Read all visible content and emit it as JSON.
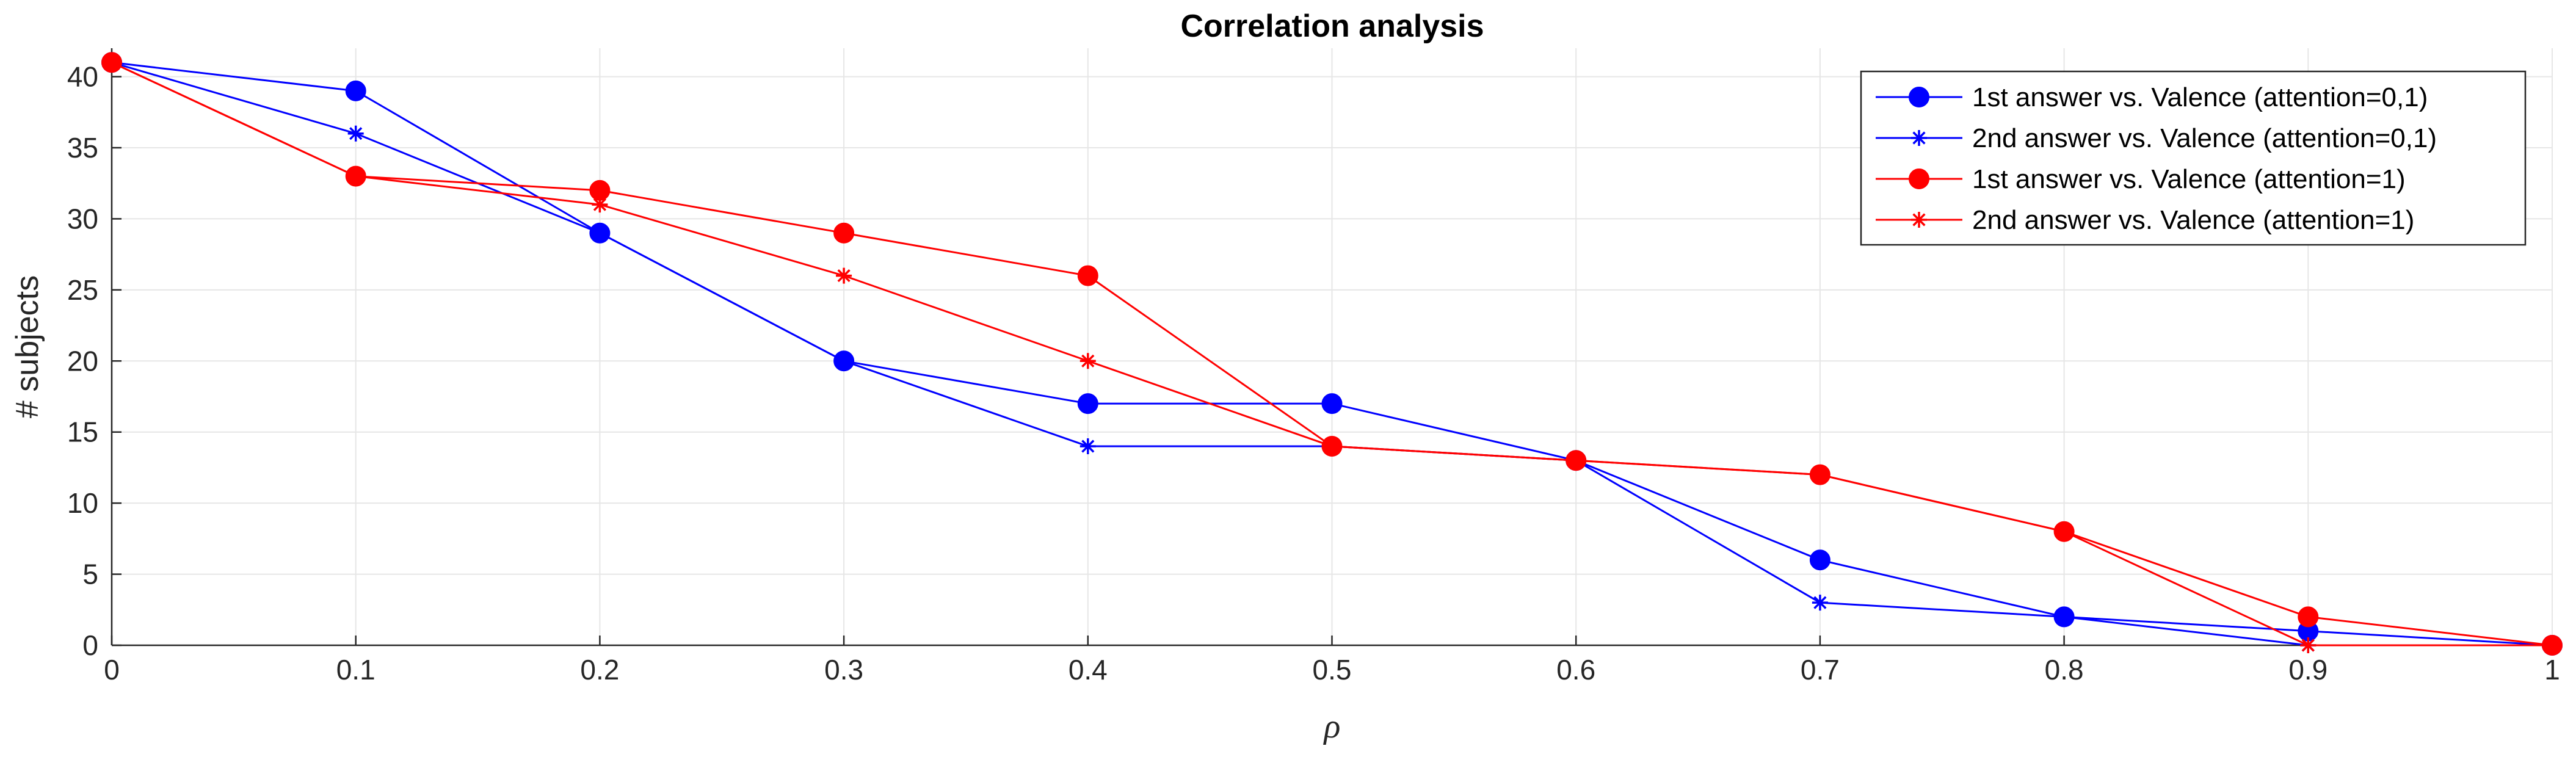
{
  "chart_data": {
    "type": "line",
    "title": "Correlation analysis",
    "xlabel": "ρ",
    "ylabel": "# subjects",
    "xlim": [
      0,
      1
    ],
    "ylim": [
      0,
      42
    ],
    "grid": true,
    "legend_position": "top-right",
    "x": [
      0,
      0.1,
      0.2,
      0.3,
      0.4,
      0.5,
      0.6,
      0.7,
      0.8,
      0.9,
      1
    ],
    "x_tick_labels": [
      "0",
      "0.1",
      "0.2",
      "0.3",
      "0.4",
      "0.5",
      "0.6",
      "0.7",
      "0.8",
      "0.9",
      "1"
    ],
    "y_ticks": [
      0,
      5,
      10,
      15,
      20,
      25,
      30,
      35,
      40
    ],
    "y_tick_labels": [
      "0",
      "5",
      "10",
      "15",
      "20",
      "25",
      "30",
      "35",
      "40"
    ],
    "series": [
      {
        "name": "1st answer vs. Valence (attention=0,1)",
        "color": "#0000ff",
        "marker": "circle",
        "values": [
          41,
          39,
          29,
          20,
          17,
          17,
          13,
          6,
          2,
          1,
          0
        ]
      },
      {
        "name": "2nd answer vs. Valence (attention=0,1)",
        "color": "#0000ff",
        "marker": "asterisk",
        "values": [
          41,
          36,
          29,
          20,
          14,
          14,
          13,
          3,
          2,
          0,
          0
        ]
      },
      {
        "name": "1st answer vs. Valence (attention=1)",
        "color": "#ff0000",
        "marker": "circle",
        "values": [
          41,
          33,
          32,
          29,
          26,
          14,
          13,
          12,
          8,
          2,
          0
        ]
      },
      {
        "name": "2nd answer vs. Valence (attention=1)",
        "color": "#ff0000",
        "marker": "asterisk",
        "values": [
          41,
          33,
          31,
          26,
          20,
          14,
          13,
          12,
          8,
          0,
          0
        ]
      }
    ]
  }
}
